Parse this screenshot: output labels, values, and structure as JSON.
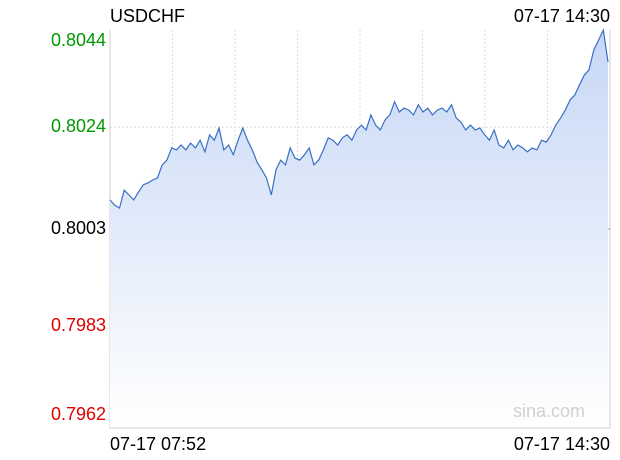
{
  "chart_data": {
    "type": "line",
    "title": "USDCHF",
    "timestamp": "07-17 14:30",
    "watermark": "sina.com",
    "x_labels": [
      "07-17 07:52",
      "07-17 14:30"
    ],
    "reference": 0.8003,
    "up_color": "#009900",
    "down_color": "#e00000",
    "flat_color": "#000000",
    "color": "#3a6fc4",
    "grid": true,
    "ylim": [
      0.7962,
      0.8044
    ],
    "yticks": [
      0.8044,
      0.8024,
      0.8003,
      0.7983,
      0.7962
    ],
    "values": [
      0.8009,
      0.80079,
      0.80073,
      0.8011,
      0.801,
      0.8009,
      0.80106,
      0.80121,
      0.80125,
      0.80131,
      0.80135,
      0.80162,
      0.80172,
      0.80197,
      0.80193,
      0.80203,
      0.80193,
      0.80207,
      0.80197,
      0.80213,
      0.80189,
      0.80224,
      0.80213,
      0.80238,
      0.80193,
      0.80203,
      0.80183,
      0.80213,
      0.80238,
      0.80213,
      0.80193,
      0.80168,
      0.80152,
      0.80135,
      0.801,
      0.80152,
      0.80172,
      0.80162,
      0.80197,
      0.80176,
      0.80172,
      0.80183,
      0.80197,
      0.80162,
      0.80172,
      0.80193,
      0.80218,
      0.80213,
      0.80203,
      0.80218,
      0.80224,
      0.80213,
      0.80234,
      0.80244,
      0.80234,
      0.80265,
      0.80244,
      0.80234,
      0.80255,
      0.80265,
      0.80292,
      0.80271,
      0.80279,
      0.80275,
      0.80265,
      0.80286,
      0.80271,
      0.80279,
      0.80265,
      0.80275,
      0.80279,
      0.80271,
      0.80286,
      0.80259,
      0.8025,
      0.80234,
      0.80244,
      0.80234,
      0.80238,
      0.80224,
      0.80213,
      0.80234,
      0.80203,
      0.80197,
      0.80213,
      0.80193,
      0.80203,
      0.80197,
      0.80189,
      0.80197,
      0.80193,
      0.80213,
      0.80209,
      0.80224,
      0.80244,
      0.80259,
      0.80275,
      0.80296,
      0.80306,
      0.80327,
      0.80347,
      0.80358,
      0.80399,
      0.80419,
      0.8044,
      0.80374
    ]
  }
}
